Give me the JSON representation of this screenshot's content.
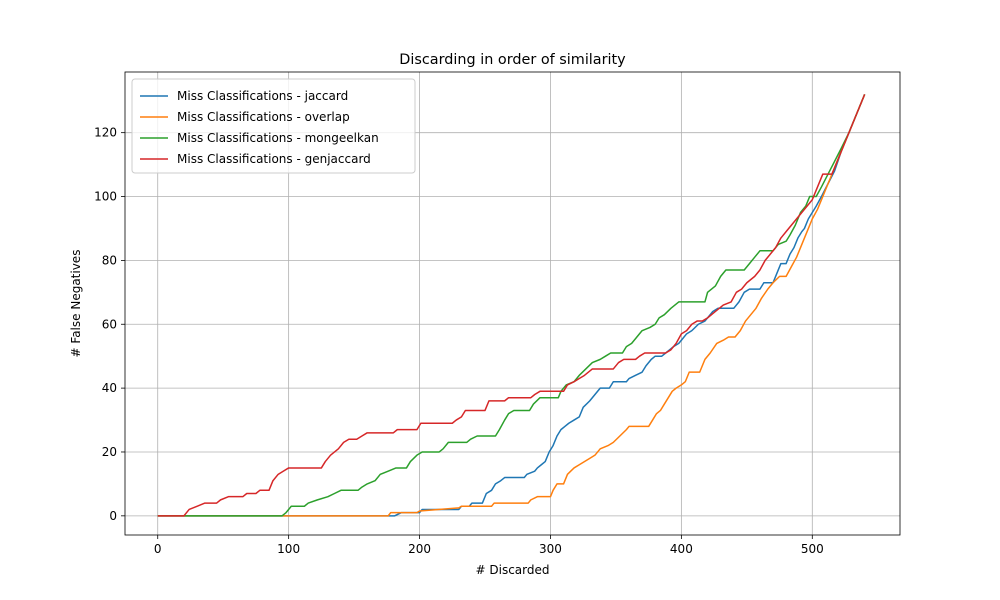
{
  "chart_data": {
    "type": "line",
    "title": "Discarding in order of similarity",
    "xlabel": "# Discarded",
    "ylabel": "# False Negatives",
    "xlim": [
      -25,
      567
    ],
    "ylim": [
      -6,
      139
    ],
    "xticks": [
      0,
      100,
      200,
      300,
      400,
      500
    ],
    "yticks": [
      0,
      20,
      40,
      60,
      80,
      100,
      120
    ],
    "grid": true,
    "legend_position": "top-left",
    "series": [
      {
        "name": "Miss Classifications - jaccard",
        "color": "#1f77b4",
        "points": [
          [
            0,
            0
          ],
          [
            181,
            0
          ],
          [
            186,
            1
          ],
          [
            200,
            1
          ],
          [
            202,
            2
          ],
          [
            230,
            2
          ],
          [
            232,
            3
          ],
          [
            238,
            3
          ],
          [
            240,
            4
          ],
          [
            248,
            4
          ],
          [
            251,
            7
          ],
          [
            255,
            8
          ],
          [
            258,
            10
          ],
          [
            262,
            11
          ],
          [
            265,
            12
          ],
          [
            280,
            12
          ],
          [
            282,
            13
          ],
          [
            288,
            14
          ],
          [
            290,
            15
          ],
          [
            293,
            16
          ],
          [
            296,
            17
          ],
          [
            299,
            20
          ],
          [
            302,
            22
          ],
          [
            305,
            25
          ],
          [
            308,
            27
          ],
          [
            311,
            28
          ],
          [
            314,
            29
          ],
          [
            318,
            30
          ],
          [
            322,
            31
          ],
          [
            325,
            34
          ],
          [
            330,
            36
          ],
          [
            334,
            38
          ],
          [
            338,
            40
          ],
          [
            345,
            40
          ],
          [
            348,
            42
          ],
          [
            358,
            42
          ],
          [
            360,
            43
          ],
          [
            365,
            44
          ],
          [
            370,
            45
          ],
          [
            373,
            47
          ],
          [
            377,
            49
          ],
          [
            380,
            50
          ],
          [
            385,
            50
          ],
          [
            388,
            51
          ],
          [
            391,
            52
          ],
          [
            394,
            53
          ],
          [
            398,
            54
          ],
          [
            400,
            55
          ],
          [
            404,
            57
          ],
          [
            408,
            58
          ],
          [
            413,
            60
          ],
          [
            418,
            61
          ],
          [
            424,
            64
          ],
          [
            428,
            65
          ],
          [
            440,
            65
          ],
          [
            444,
            67
          ],
          [
            448,
            70
          ],
          [
            452,
            71
          ],
          [
            460,
            71
          ],
          [
            463,
            73
          ],
          [
            470,
            73
          ],
          [
            473,
            76
          ],
          [
            476,
            79
          ],
          [
            480,
            79
          ],
          [
            483,
            82
          ],
          [
            486,
            84
          ],
          [
            489,
            87
          ],
          [
            492,
            89
          ],
          [
            494,
            90
          ],
          [
            497,
            93
          ],
          [
            500,
            95
          ],
          [
            503,
            97
          ],
          [
            507,
            100
          ],
          [
            512,
            104
          ],
          [
            517,
            108
          ],
          [
            522,
            114
          ],
          [
            528,
            120
          ],
          [
            534,
            126
          ],
          [
            540,
            132
          ]
        ]
      },
      {
        "name": "Miss Classifications - overlap",
        "color": "#ff7f0e",
        "points": [
          [
            0,
            0
          ],
          [
            176,
            0
          ],
          [
            178,
            1
          ],
          [
            198,
            1
          ],
          [
            200,
            1.5
          ],
          [
            230,
            2.5
          ],
          [
            232,
            3
          ],
          [
            255,
            3
          ],
          [
            257,
            4
          ],
          [
            283,
            4
          ],
          [
            285,
            5
          ],
          [
            290,
            6
          ],
          [
            300,
            6
          ],
          [
            302,
            8
          ],
          [
            305,
            10
          ],
          [
            310,
            10
          ],
          [
            313,
            13
          ],
          [
            318,
            15
          ],
          [
            322,
            16
          ],
          [
            330,
            18
          ],
          [
            334,
            19
          ],
          [
            338,
            21
          ],
          [
            344,
            22
          ],
          [
            348,
            23
          ],
          [
            353,
            25
          ],
          [
            358,
            27
          ],
          [
            360,
            28
          ],
          [
            375,
            28
          ],
          [
            378,
            30
          ],
          [
            381,
            32
          ],
          [
            384,
            33
          ],
          [
            387,
            35
          ],
          [
            390,
            37
          ],
          [
            393,
            39
          ],
          [
            396,
            40
          ],
          [
            400,
            41
          ],
          [
            403,
            42
          ],
          [
            406,
            45
          ],
          [
            414,
            45
          ],
          [
            418,
            49
          ],
          [
            422,
            51
          ],
          [
            427,
            54
          ],
          [
            432,
            55
          ],
          [
            436,
            56
          ],
          [
            441,
            56
          ],
          [
            445,
            58
          ],
          [
            449,
            61
          ],
          [
            453,
            63
          ],
          [
            457,
            65
          ],
          [
            461,
            68
          ],
          [
            466,
            71
          ],
          [
            470,
            73
          ],
          [
            475,
            75
          ],
          [
            480,
            75
          ],
          [
            484,
            78
          ],
          [
            488,
            81
          ],
          [
            492,
            85
          ],
          [
            496,
            89
          ],
          [
            500,
            93
          ],
          [
            504,
            96
          ],
          [
            508,
            100
          ],
          [
            514,
            106
          ],
          [
            520,
            112
          ],
          [
            527,
            119
          ],
          [
            534,
            126
          ],
          [
            540,
            132
          ]
        ]
      },
      {
        "name": "Miss Classifications - mongeelkan",
        "color": "#2ca02c",
        "points": [
          [
            0,
            0
          ],
          [
            95,
            0
          ],
          [
            98,
            1
          ],
          [
            102,
            3
          ],
          [
            112,
            3
          ],
          [
            115,
            4
          ],
          [
            122,
            5
          ],
          [
            130,
            6
          ],
          [
            135,
            7
          ],
          [
            140,
            8
          ],
          [
            153,
            8
          ],
          [
            156,
            9
          ],
          [
            160,
            10
          ],
          [
            166,
            11
          ],
          [
            170,
            13
          ],
          [
            176,
            14
          ],
          [
            182,
            15
          ],
          [
            190,
            15
          ],
          [
            193,
            17
          ],
          [
            198,
            19
          ],
          [
            202,
            20
          ],
          [
            215,
            20
          ],
          [
            218,
            21
          ],
          [
            222,
            23
          ],
          [
            236,
            23
          ],
          [
            239,
            24
          ],
          [
            244,
            25
          ],
          [
            258,
            25
          ],
          [
            261,
            27
          ],
          [
            265,
            30
          ],
          [
            268,
            32
          ],
          [
            272,
            33
          ],
          [
            284,
            33
          ],
          [
            287,
            35
          ],
          [
            292,
            37
          ],
          [
            306,
            37
          ],
          [
            308,
            39
          ],
          [
            312,
            41
          ],
          [
            318,
            42
          ],
          [
            322,
            44
          ],
          [
            327,
            46
          ],
          [
            332,
            48
          ],
          [
            338,
            49
          ],
          [
            342,
            50
          ],
          [
            346,
            51
          ],
          [
            355,
            51
          ],
          [
            358,
            53
          ],
          [
            362,
            54
          ],
          [
            366,
            56
          ],
          [
            370,
            58
          ],
          [
            376,
            59
          ],
          [
            380,
            60
          ],
          [
            383,
            62
          ],
          [
            387,
            63
          ],
          [
            392,
            65
          ],
          [
            398,
            67
          ],
          [
            418,
            67
          ],
          [
            420,
            70
          ],
          [
            426,
            72
          ],
          [
            430,
            75
          ],
          [
            434,
            77
          ],
          [
            448,
            77
          ],
          [
            452,
            79
          ],
          [
            456,
            81
          ],
          [
            460,
            83
          ],
          [
            470,
            83
          ],
          [
            474,
            85
          ],
          [
            480,
            86
          ],
          [
            483,
            88
          ],
          [
            487,
            91
          ],
          [
            491,
            95
          ],
          [
            495,
            97
          ],
          [
            498,
            100
          ],
          [
            503,
            100
          ],
          [
            507,
            103
          ],
          [
            512,
            107
          ],
          [
            517,
            111
          ],
          [
            522,
            115
          ],
          [
            528,
            120
          ],
          [
            534,
            126
          ],
          [
            540,
            132
          ]
        ]
      },
      {
        "name": "Miss Classifications - genjaccard",
        "color": "#d62728",
        "points": [
          [
            0,
            0
          ],
          [
            20,
            0
          ],
          [
            24,
            2
          ],
          [
            30,
            3
          ],
          [
            36,
            4
          ],
          [
            45,
            4
          ],
          [
            48,
            5
          ],
          [
            54,
            6
          ],
          [
            65,
            6
          ],
          [
            68,
            7
          ],
          [
            75,
            7
          ],
          [
            78,
            8
          ],
          [
            85,
            8
          ],
          [
            88,
            11
          ],
          [
            92,
            13
          ],
          [
            96,
            14
          ],
          [
            100,
            15
          ],
          [
            125,
            15
          ],
          [
            128,
            17
          ],
          [
            132,
            19
          ],
          [
            138,
            21
          ],
          [
            142,
            23
          ],
          [
            146,
            24
          ],
          [
            152,
            24
          ],
          [
            156,
            25
          ],
          [
            160,
            26
          ],
          [
            180,
            26
          ],
          [
            183,
            27
          ],
          [
            198,
            27
          ],
          [
            201,
            29
          ],
          [
            225,
            29
          ],
          [
            228,
            30
          ],
          [
            232,
            31
          ],
          [
            235,
            33
          ],
          [
            250,
            33
          ],
          [
            253,
            36
          ],
          [
            265,
            36
          ],
          [
            268,
            37
          ],
          [
            285,
            37
          ],
          [
            288,
            38
          ],
          [
            292,
            39
          ],
          [
            310,
            39
          ],
          [
            313,
            41
          ],
          [
            318,
            42
          ],
          [
            322,
            43
          ],
          [
            326,
            44
          ],
          [
            332,
            46
          ],
          [
            348,
            46
          ],
          [
            352,
            48
          ],
          [
            356,
            49
          ],
          [
            365,
            49
          ],
          [
            368,
            50
          ],
          [
            372,
            51
          ],
          [
            388,
            51
          ],
          [
            392,
            52
          ],
          [
            396,
            54
          ],
          [
            400,
            57
          ],
          [
            404,
            58
          ],
          [
            408,
            60
          ],
          [
            412,
            61
          ],
          [
            416,
            61
          ],
          [
            420,
            62
          ],
          [
            426,
            64
          ],
          [
            432,
            66
          ],
          [
            438,
            67
          ],
          [
            442,
            70
          ],
          [
            446,
            71
          ],
          [
            450,
            73
          ],
          [
            456,
            75
          ],
          [
            460,
            77
          ],
          [
            464,
            80
          ],
          [
            468,
            82
          ],
          [
            472,
            84
          ],
          [
            476,
            87
          ],
          [
            480,
            89
          ],
          [
            484,
            91
          ],
          [
            488,
            93
          ],
          [
            492,
            95
          ],
          [
            496,
            97
          ],
          [
            500,
            99
          ],
          [
            504,
            103
          ],
          [
            508,
            107
          ],
          [
            515,
            107
          ],
          [
            520,
            112
          ],
          [
            527,
            119
          ],
          [
            534,
            126
          ],
          [
            540,
            132
          ]
        ]
      }
    ]
  }
}
